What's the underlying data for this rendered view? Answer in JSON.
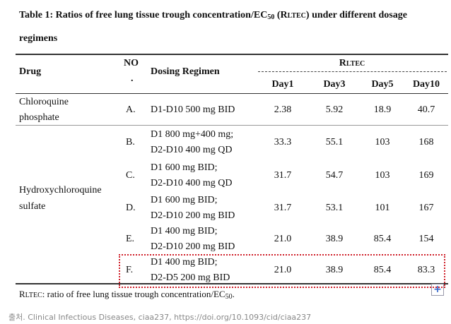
{
  "title_parts": [
    "Table 1: Ratios of free lung tissue trough concentration/EC",
    "50",
    " (R",
    "LTEC",
    ") under different dosage"
  ],
  "title_line2": "regimens",
  "header": {
    "drug": "Drug",
    "no": [
      "NO",
      "."
    ],
    "regimen": "Dosing Regimen",
    "group": [
      "R",
      "LTEC"
    ],
    "days": [
      "Day1",
      "Day3",
      "Day5",
      "Day10"
    ]
  },
  "groups": [
    {
      "drug": [
        "Chloroquine",
        "phosphate"
      ],
      "rows": [
        {
          "no": "A.",
          "regimen": [
            "D1-D10 500 mg BID"
          ],
          "values": [
            "2.38",
            "5.92",
            "18.9",
            "40.7"
          ]
        }
      ]
    },
    {
      "drug": [
        "Hydroxychloroquine",
        "sulfate"
      ],
      "rows": [
        {
          "no": "B.",
          "regimen": [
            "D1 800 mg+400 mg;",
            "D2-D10 400 mg QD"
          ],
          "values": [
            "33.3",
            "55.1",
            "103",
            "168"
          ]
        },
        {
          "no": "C.",
          "regimen": [
            "D1 600 mg BID;",
            "D2-D10 400 mg QD"
          ],
          "values": [
            "31.7",
            "54.7",
            "103",
            "169"
          ]
        },
        {
          "no": "D.",
          "regimen": [
            "D1 600 mg BID;",
            "D2-D10 200 mg BID"
          ],
          "values": [
            "31.7",
            "53.1",
            "101",
            "167"
          ]
        },
        {
          "no": "E.",
          "regimen": [
            "D1 400 mg BID;",
            "D2-D10 200 mg BID"
          ],
          "values": [
            "21.0",
            "38.9",
            "85.4",
            "154"
          ]
        },
        {
          "no": "F.",
          "regimen": [
            "D1 400 mg BID;",
            "D2-D5 200 mg BID"
          ],
          "values": [
            "21.0",
            "38.9",
            "85.4",
            "83.3"
          ]
        }
      ]
    }
  ],
  "footnote_parts": [
    "R",
    "LTEC",
    ": ratio of free lung tissue trough concentration/EC",
    "50",
    "."
  ],
  "caption": "출처. Clinical Infectious Diseases, ciaa237, https://doi.org/10.1093/cid/ciaa237"
}
